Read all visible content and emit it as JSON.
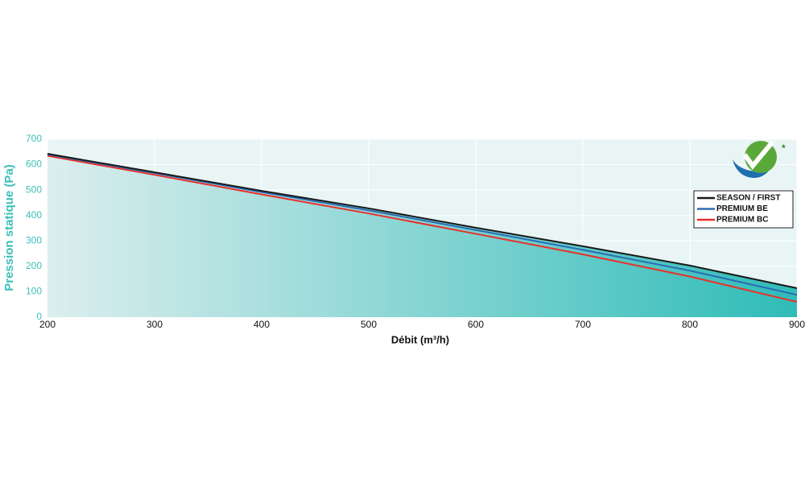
{
  "chart_data": {
    "type": "line",
    "x": [
      200,
      300,
      400,
      500,
      600,
      700,
      800,
      900
    ],
    "series": [
      {
        "name": "SEASON / FIRST",
        "color": "#1a1a1a",
        "values": [
          643,
          570,
          497,
          428,
          352,
          279,
          203,
          114
        ]
      },
      {
        "name": "PREMIUM BE",
        "color": "#2a6db5",
        "values": [
          640,
          567,
          492,
          420,
          343,
          265,
          183,
          88
        ]
      },
      {
        "name": "PREMIUM BC",
        "color": "#e8302a",
        "values": [
          635,
          560,
          483,
          408,
          328,
          247,
          160,
          60
        ]
      }
    ],
    "xlabel": "Débit (m³/h)",
    "ylabel": "Pression statique (Pa)",
    "xlim": [
      200,
      900
    ],
    "xticks": [
      200,
      300,
      400,
      500,
      600,
      700,
      800,
      900
    ],
    "ylim": [
      0,
      700
    ],
    "yticks": [
      0,
      100,
      200,
      300,
      400,
      500,
      600,
      700
    ],
    "grid": true,
    "legend": "upper right"
  }
}
